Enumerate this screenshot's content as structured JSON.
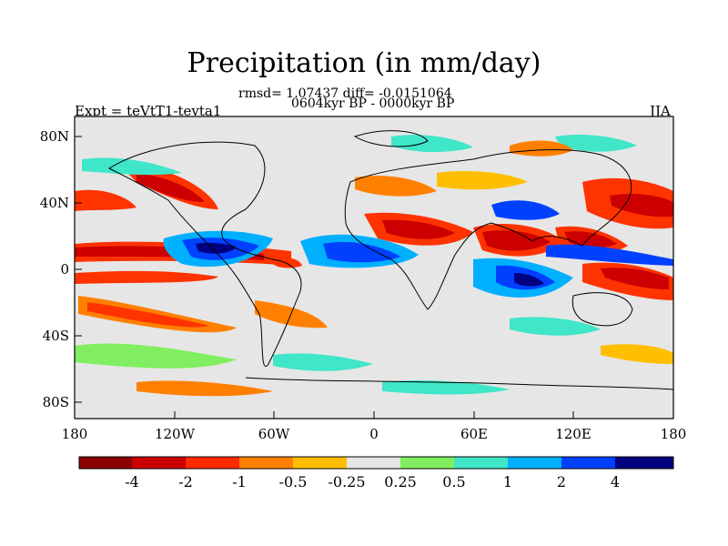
{
  "map": {
    "title": "Precipitation (in mm/day)",
    "stats_line": "rmsd= 1.07437 diff= -0.0151064",
    "period_line": "0604kyr BP - 0000kyr BP",
    "experiment_label": "Expt = teVtT1-tevta1",
    "season_label": "JJA",
    "lat_labels": [
      "80N",
      "40N",
      "0",
      "40S",
      "80S"
    ],
    "lon_labels": [
      "180",
      "120W",
      "60W",
      "0",
      "60E",
      "120E",
      "180"
    ]
  },
  "colorbar": {
    "labels": [
      "-4",
      "-2",
      "-1",
      "-0.5",
      "-0.25",
      "0.25",
      "0.5",
      "1",
      "2",
      "4"
    ],
    "colors": [
      "#8b0000",
      "#cc0000",
      "#ff2a00",
      "#ff8000",
      "#ffbf00",
      "#e6e6e6",
      "#80ee60",
      "#40e6c8",
      "#00b0ff",
      "#0040ff",
      "#000080"
    ]
  },
  "colors": {
    "background_field": "#e6e6e6",
    "strong_dry": "#cc0000",
    "dry": "#ff3300",
    "mild_dry": "#ff8000",
    "slight_dry": "#ffbf00",
    "slight_wet": "#80ee60",
    "mild_wet": "#40e6c8",
    "wet": "#00b0ff",
    "strong_wet": "#0040ff",
    "extreme_wet": "#000080"
  }
}
